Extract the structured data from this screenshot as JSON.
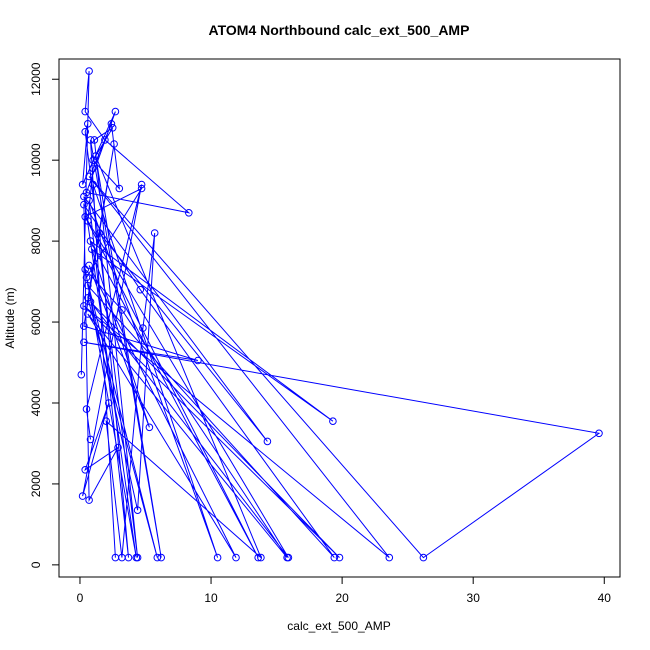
{
  "chart_data": {
    "type": "line",
    "title": "ATOM4 Northbound calc_ext_500_AMP",
    "xlabel": "calc_ext_500_AMP",
    "ylabel": "Altitude (m)",
    "xlim": [
      -1.6,
      41.2
    ],
    "ylim": [
      -300,
      12500
    ],
    "xticks": [
      0,
      10,
      20,
      30,
      40
    ],
    "yticks": [
      0,
      2000,
      4000,
      6000,
      8000,
      10000,
      12000
    ],
    "grid": false,
    "legend": "none",
    "series_color": "#0000ff",
    "marker": "open-circle",
    "series": [
      {
        "name": "",
        "x": [
          0.1,
          0.7,
          0.4,
          1.9,
          8.3,
          0.5,
          2.7,
          0.2,
          0.6,
          0.4,
          4.4,
          1.1,
          2.5,
          1.0,
          3.0,
          2.4,
          1.0,
          0.6,
          15.9,
          0.8,
          19.8,
          0.3,
          23.6,
          0.7,
          26.2,
          39.6,
          0.3,
          9.0,
          0.3,
          2.6,
          0.6,
          5.9,
          0.5,
          4.7,
          0.4,
          13.6,
          0.8,
          19.3,
          0.9,
          5.3,
          0.7,
          11.9,
          0.6,
          15.8,
          3.2,
          0.4,
          4.3,
          0.3,
          14.3,
          1.5,
          3.7,
          0.7,
          10.5,
          1.0,
          2.7,
          0.8,
          6.2,
          1.2,
          13.8,
          2.0,
          3.2,
          4.8,
          5.7,
          4.4,
          0.6,
          19.4,
          4.6,
          0.3,
          0.7,
          2.9,
          0.4,
          2.2,
          0.2,
          4.7,
          0.5,
          0.8
        ],
        "y": [
          4700,
          12200,
          11200,
          10500,
          8700,
          9200,
          11200,
          9400,
          10900,
          10700,
          180,
          10500,
          10800,
          10000,
          9300,
          10900,
          9800,
          8500,
          180,
          6500,
          180,
          6400,
          180,
          9600,
          180,
          3250,
          5500,
          5050,
          5900,
          10400,
          6600,
          180,
          7100,
          9300,
          8600,
          180,
          8000,
          3550,
          7800,
          3400,
          7400,
          180,
          6200,
          180,
          6300,
          7300,
          180,
          9100,
          3050,
          8200,
          180,
          9000,
          180,
          9400,
          180,
          10500,
          180,
          10100,
          180,
          3550,
          180,
          5850,
          8200,
          1350,
          6900,
          180,
          6800,
          8900,
          1600,
          2900,
          2350,
          4000,
          1700,
          9400,
          3850,
          3100
        ]
      }
    ]
  }
}
